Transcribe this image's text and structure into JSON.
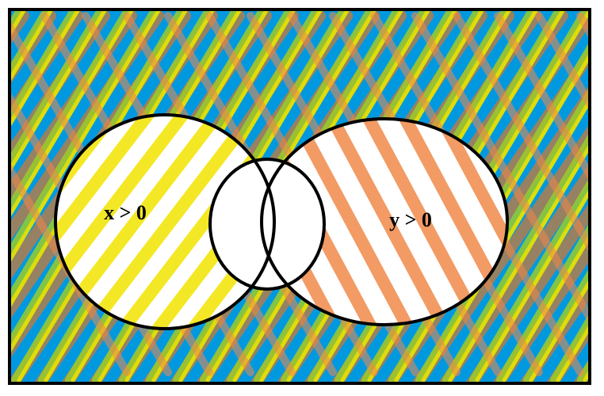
{
  "diagram": {
    "type": "venn",
    "colors": {
      "universe_fill": "#0099e0",
      "border": "#000000",
      "set_fill": "#ffffff",
      "hatch_x": "#f2e400",
      "hatch_x_alt": "#9ccc2a",
      "hatch_y": "#f08a4a",
      "hatch_y_alt": "#c9793a"
    },
    "sets": [
      {
        "id": "x",
        "label": "x > 0",
        "hatch": "yellow-green"
      },
      {
        "id": "y",
        "label": "y > 0",
        "hatch": "orange"
      }
    ],
    "regions": {
      "x_only": "shaded-yellow",
      "y_only": "shaded-orange",
      "intersection": "unshaded",
      "outside": "shaded-both"
    }
  }
}
